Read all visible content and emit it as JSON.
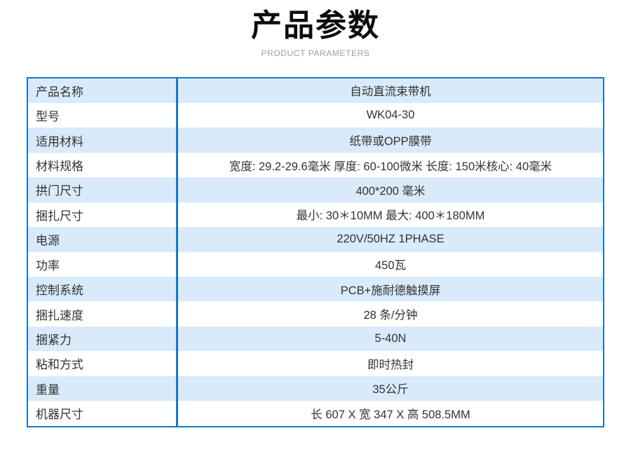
{
  "header": {
    "title": "产品参数",
    "subtitle": "PRODUCT PARAMETERS"
  },
  "colors": {
    "table_border_blue": "#1779cb",
    "row_stripe_blue": "#d9eafa",
    "body_text": "#333333",
    "title_text": "#0c0c0c",
    "subtitle_gray": "#9e9e9e"
  },
  "table": {
    "rows": [
      {
        "label": "产品名称",
        "value": "自动直流束带机"
      },
      {
        "label": "型号",
        "value": "WK04-30"
      },
      {
        "label": "适用材料",
        "value": "纸带或OPP膜带"
      },
      {
        "label": "材料规格",
        "value": "宽度: 29.2-29.6毫米 厚度: 60-100微米 长度: 150米核心: 40毫米"
      },
      {
        "label": "拱门尺寸",
        "value": "400*200 毫米"
      },
      {
        "label": "捆扎尺寸",
        "value": "最小: 30＊10MM 最大: 400＊180MM"
      },
      {
        "label": "电源",
        "value": "220V/50HZ 1PHASE"
      },
      {
        "label": "功率",
        "value": "450瓦"
      },
      {
        "label": "控制系统",
        "value": "PCB+施耐德触摸屏"
      },
      {
        "label": "捆扎速度",
        "value": "28 条/分钟"
      },
      {
        "label": "捆紧力",
        "value": "5-40N"
      },
      {
        "label": "粘和方式",
        "value": "即时热封"
      },
      {
        "label": "重量",
        "value": "35公斤"
      },
      {
        "label": "机器尺寸",
        "value": "长 607 X 宽 347 X 高 508.5MM"
      }
    ]
  }
}
